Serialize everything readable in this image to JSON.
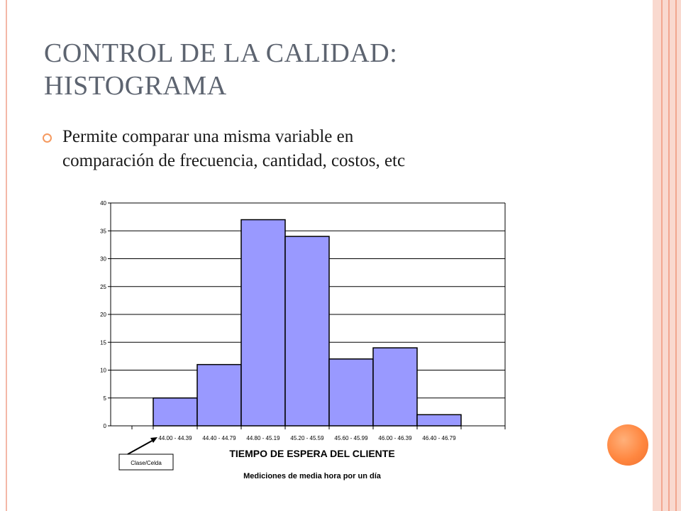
{
  "slide": {
    "title_line1": "CONTROL DE LA CALIDAD:",
    "title_line2": "HISTOGRAMA",
    "bullet_line1": "Permite comparar una misma variable en",
    "bullet_line2": "comparación de frecuencia, cantidad, costos, etc",
    "accent_color": "#ff8740",
    "frame_color": "#f9d9cf",
    "title_color": "#5d6470"
  },
  "chart_data": {
    "type": "bar",
    "categories": [
      "44.00 - 44.39",
      "44.40 - 44.79",
      "44.80 - 45.19",
      "45.20 - 45.59",
      "45.60 - 45.99",
      "46.00 - 46.39",
      "46.40 - 46.79"
    ],
    "values": [
      5,
      11,
      37,
      34,
      12,
      14,
      2
    ],
    "xlabel": "TIEMPO DE ESPERA DEL CLIENTE",
    "subtitle": "Mediciones de media hora por un día",
    "annotation": "Clase/Celda",
    "ylim": [
      0,
      40
    ],
    "yticks": [
      0,
      5,
      10,
      15,
      20,
      25,
      30,
      35,
      40
    ],
    "grid": true,
    "bar_color": "#9999ff"
  }
}
